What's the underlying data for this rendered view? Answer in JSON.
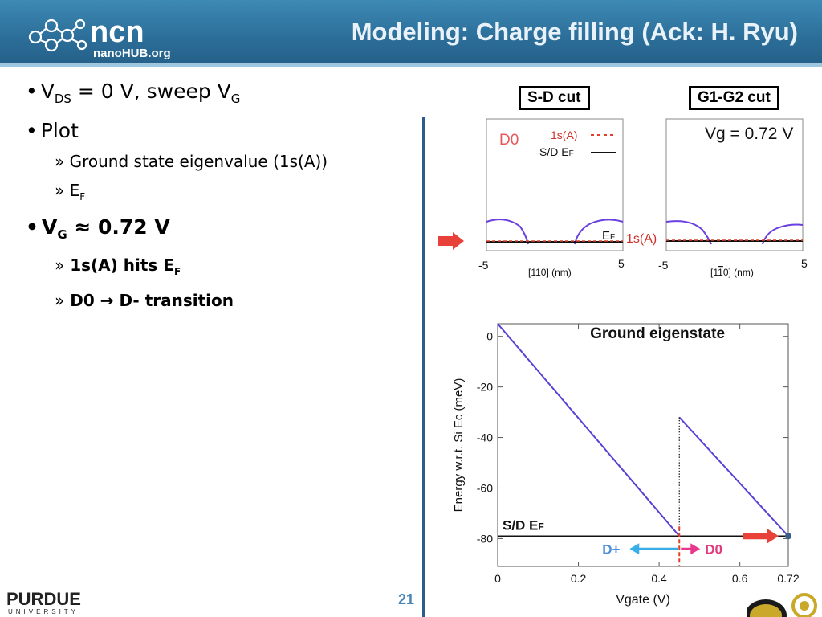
{
  "header": {
    "title": "Modeling: Charge filling (Ack: H. Ryu)",
    "logo_text": "nanoHUB.org",
    "logo_mark": "ncn"
  },
  "bullets": {
    "b1": {
      "v": "V",
      "sub": "DS",
      "rest": " = 0 V, sweep V",
      "sub2": "G"
    },
    "b2": {
      "text": "Plot"
    },
    "b2_1": "Ground state eigenvalue (1s(A))",
    "b2_2": {
      "e": "E",
      "sub": "F"
    },
    "b3": {
      "v": "V",
      "sub": "G",
      "rest": " ≈ 0.72 V"
    },
    "b3_1": {
      "text": "1s(A) hits E",
      "sub": "F"
    },
    "b3_2": {
      "left": "D0",
      "arrow": "→",
      "right": "D- transition"
    },
    "sub_marker": "»",
    "bullet_marker": "•"
  },
  "cuts": {
    "sd_label": "S-D cut",
    "g_label": "G1-G2 cut",
    "sd_state": "D0",
    "legend_1sA": "1s(A)",
    "legend_sdef": "S/D E",
    "legend_sdef_sub": "F",
    "ef_label": "E",
    "ef_label_sub": "F",
    "onesA_label": "1s(A)",
    "vg_label": "Vg = 0.72 V",
    "tick_left": "-5",
    "tick_right": "5",
    "axis_sd": "[110] (nm)",
    "axis_g": "[1",
    "axis_g_bar": "1",
    "axis_g_tail": "0] (nm)"
  },
  "chart_data": {
    "type": "line",
    "title": "Ground eigenstate",
    "xlabel": "Vgate (V)",
    "ylabel": "Energy w.r.t. Si Ec (meV)",
    "xlim": [
      0,
      0.72
    ],
    "ylim": [
      -91,
      5
    ],
    "xticks": [
      "0",
      "0.2",
      "0.4",
      "0.6",
      "0.72"
    ],
    "yticks": [
      "0",
      "-20",
      "-40",
      "-60",
      "-80"
    ],
    "series": [
      {
        "values": [
          [
            0,
            5
          ],
          [
            0.45,
            -79
          ]
        ]
      },
      {
        "values": [
          [
            0.45,
            -32
          ],
          [
            0.72,
            -79
          ]
        ]
      }
    ],
    "reference_line": {
      "label": "S/D E",
      "label_sub": "F",
      "y": -79
    },
    "transition_x": 0.45,
    "annotations": {
      "left": "D+",
      "right": "D0"
    },
    "colors": {
      "series": "#5a3fd6",
      "transition": "#e0402a",
      "dplus": "#3aaee8",
      "d0": "#e8388c",
      "dplus_text": "#4c8fdc",
      "d0_text": "#e23a7a",
      "arrow": "#e8413a",
      "marker": "#3b5d8a"
    }
  },
  "footer": {
    "page": "21",
    "purdue": "PURDUE",
    "university": "UNIVERSITY"
  }
}
